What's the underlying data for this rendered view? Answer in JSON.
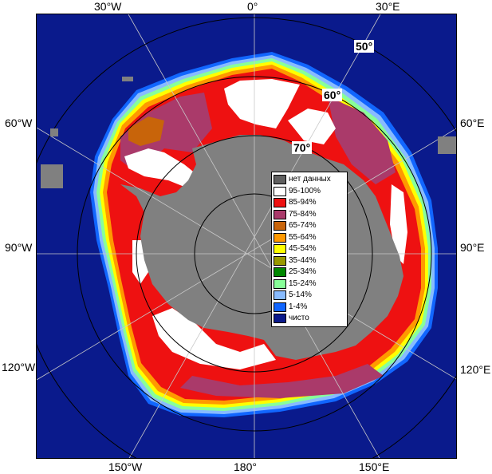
{
  "map": {
    "colors": {
      "ocean": "#0a1a8c",
      "land": "#808080",
      "ice_95_100": "#ffffff",
      "ice_85_94": "#ee1111",
      "ice_75_84": "#aa3a6a",
      "ice_65_74": "#c8640a",
      "ice_55_64": "#ff9900",
      "ice_45_54": "#ffff00",
      "ice_35_44": "#999900",
      "ice_25_34": "#008800",
      "ice_15_24": "#88ff99",
      "ice_5_14": "#88bbff",
      "ice_1_4": "#1166ff",
      "grid": "#c8c8c8",
      "lat_circle": "#000000"
    },
    "edge_labels": {
      "top_30w": "30°W",
      "top_0": "0°",
      "top_30e": "30°E",
      "left_60w": "60°W",
      "left_90w": "90°W",
      "left_120w": "120°W",
      "right_60e": "60°E",
      "right_90e": "90°E",
      "right_120e": "120°E",
      "bottom_150w": "150°W",
      "bottom_180": "180°",
      "bottom_150e": "150°E"
    },
    "lat_labels": {
      "lat_50": "50°",
      "lat_60": "60°",
      "lat_70": "70°"
    }
  },
  "legend": {
    "items": [
      {
        "label": "нет данных",
        "color": "#606060"
      },
      {
        "label": "95-100%",
        "color": "#ffffff"
      },
      {
        "label": "85-94%",
        "color": "#ee1111"
      },
      {
        "label": "75-84%",
        "color": "#aa3a6a"
      },
      {
        "label": "65-74%",
        "color": "#c8640a"
      },
      {
        "label": "55-64%",
        "color": "#ff9900"
      },
      {
        "label": "45-54%",
        "color": "#ffff00"
      },
      {
        "label": "35-44%",
        "color": "#999900"
      },
      {
        "label": "25-34%",
        "color": "#008800"
      },
      {
        "label": "15-24%",
        "color": "#88ff99"
      },
      {
        "label": "5-14%",
        "color": "#88bbff"
      },
      {
        "label": "1-4%",
        "color": "#1166ff"
      },
      {
        "label": "чисто",
        "color": "#0a1a8c"
      }
    ]
  }
}
